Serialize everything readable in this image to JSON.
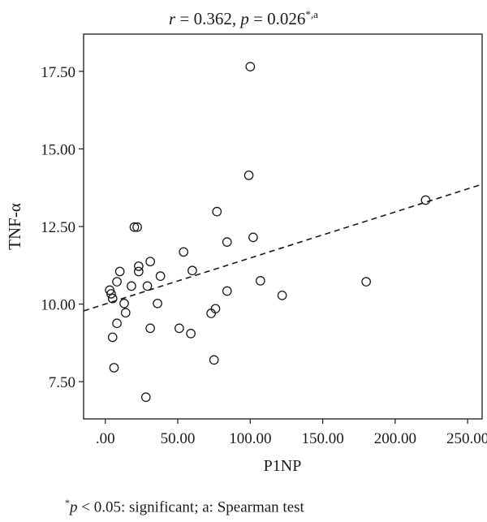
{
  "chart_data": {
    "type": "scatter",
    "title": {
      "r_label": "r",
      "r_text": " = 0.362, ",
      "p_label": "p",
      "p_text": " = 0.026",
      "p_sup": "*,a"
    },
    "xlabel": "P1NP",
    "ylabel": "TNF-α",
    "xlim": [
      -15,
      260
    ],
    "ylim": [
      6.3,
      18.7
    ],
    "x_ticks": [
      {
        "value": 0,
        "label": ".00"
      },
      {
        "value": 50,
        "label": "50.00"
      },
      {
        "value": 100,
        "label": "100.00"
      },
      {
        "value": 150,
        "label": "150.00"
      },
      {
        "value": 200,
        "label": "200.00"
      },
      {
        "value": 250,
        "label": "250.00"
      }
    ],
    "y_ticks": [
      {
        "value": 7.5,
        "label": "7.50"
      },
      {
        "value": 10,
        "label": "10.00"
      },
      {
        "value": 12.5,
        "label": "12.50"
      },
      {
        "value": 15,
        "label": "15.00"
      },
      {
        "value": 17.5,
        "label": "17.50"
      }
    ],
    "grid": false,
    "trend_line": {
      "style": "dashed",
      "x": [
        -15,
        260
      ],
      "y": [
        9.78,
        13.86
      ]
    },
    "points": [
      {
        "x": 100,
        "y": 17.65
      },
      {
        "x": 99,
        "y": 14.15
      },
      {
        "x": 221,
        "y": 13.35
      },
      {
        "x": 20,
        "y": 12.48
      },
      {
        "x": 22,
        "y": 12.48
      },
      {
        "x": 77,
        "y": 12.98
      },
      {
        "x": 102,
        "y": 12.15
      },
      {
        "x": 84,
        "y": 12.0
      },
      {
        "x": 54,
        "y": 11.68
      },
      {
        "x": 23,
        "y": 11.22
      },
      {
        "x": 31,
        "y": 11.37
      },
      {
        "x": 23,
        "y": 11.05
      },
      {
        "x": 60,
        "y": 11.08
      },
      {
        "x": 10,
        "y": 11.05
      },
      {
        "x": 38,
        "y": 10.9
      },
      {
        "x": 8,
        "y": 10.72
      },
      {
        "x": 18,
        "y": 10.58
      },
      {
        "x": 29,
        "y": 10.58
      },
      {
        "x": 107,
        "y": 10.75
      },
      {
        "x": 180,
        "y": 10.72
      },
      {
        "x": 3,
        "y": 10.45
      },
      {
        "x": 4,
        "y": 10.33
      },
      {
        "x": 5,
        "y": 10.18
      },
      {
        "x": 84,
        "y": 10.42
      },
      {
        "x": 122,
        "y": 10.28
      },
      {
        "x": 13,
        "y": 10.02
      },
      {
        "x": 36,
        "y": 10.02
      },
      {
        "x": 14,
        "y": 9.72
      },
      {
        "x": 76,
        "y": 9.85
      },
      {
        "x": 73,
        "y": 9.7
      },
      {
        "x": 8,
        "y": 9.38
      },
      {
        "x": 31,
        "y": 9.22
      },
      {
        "x": 51,
        "y": 9.22
      },
      {
        "x": 59,
        "y": 9.05
      },
      {
        "x": 5,
        "y": 8.93
      },
      {
        "x": 75,
        "y": 8.2
      },
      {
        "x": 6,
        "y": 7.95
      },
      {
        "x": 28,
        "y": 7.0
      }
    ],
    "footnote": {
      "star": "*",
      "p_label": "p",
      "text": " < 0.05: significant; a: Spearman test"
    }
  }
}
